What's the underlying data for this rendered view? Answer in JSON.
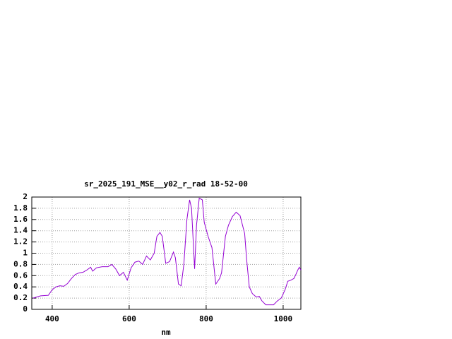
{
  "chart_data": {
    "type": "line",
    "title": "sr_2025_191_MSE__y02_r_rad 18-52-00",
    "x_label": "nm",
    "x": [
      350,
      370,
      390,
      400,
      410,
      420,
      430,
      440,
      450,
      460,
      470,
      480,
      490,
      500,
      505,
      515,
      530,
      545,
      555,
      565,
      575,
      585,
      595,
      605,
      615,
      625,
      635,
      645,
      655,
      665,
      672,
      680,
      686,
      695,
      705,
      715,
      720,
      728,
      735,
      742,
      750,
      757,
      762,
      770,
      775,
      782,
      790,
      795,
      805,
      815,
      825,
      835,
      840,
      850,
      858,
      868,
      878,
      888,
      900,
      905,
      912,
      920,
      930,
      938,
      945,
      955,
      965,
      975,
      985,
      995,
      1005,
      1012,
      1020,
      1028,
      1033,
      1038,
      1042,
      1046
    ],
    "series": [
      {
        "color": "#9400d3",
        "values": [
          0.2,
          0.24,
          0.25,
          0.35,
          0.4,
          0.42,
          0.41,
          0.46,
          0.55,
          0.62,
          0.65,
          0.66,
          0.7,
          0.75,
          0.68,
          0.74,
          0.76,
          0.76,
          0.8,
          0.72,
          0.6,
          0.66,
          0.52,
          0.74,
          0.84,
          0.86,
          0.8,
          0.95,
          0.88,
          1.0,
          1.3,
          1.37,
          1.3,
          0.82,
          0.85,
          1.02,
          0.92,
          0.45,
          0.42,
          0.8,
          1.6,
          1.95,
          1.8,
          0.72,
          1.5,
          1.98,
          1.95,
          1.55,
          1.3,
          1.1,
          0.45,
          0.55,
          0.65,
          1.3,
          1.5,
          1.65,
          1.73,
          1.67,
          1.35,
          0.9,
          0.4,
          0.28,
          0.22,
          0.23,
          0.15,
          0.08,
          0.08,
          0.08,
          0.15,
          0.2,
          0.35,
          0.5,
          0.52,
          0.55,
          0.62,
          0.7,
          0.75,
          0.7
        ]
      }
    ],
    "xlim": [
      347,
      1046
    ],
    "xticks": [
      400,
      600,
      800,
      1000
    ],
    "ylim": [
      0,
      2
    ],
    "yticks": [
      0,
      0.2,
      0.4,
      0.6,
      0.8,
      1,
      1.2,
      1.4,
      1.6,
      1.8,
      2
    ],
    "grid": true
  }
}
